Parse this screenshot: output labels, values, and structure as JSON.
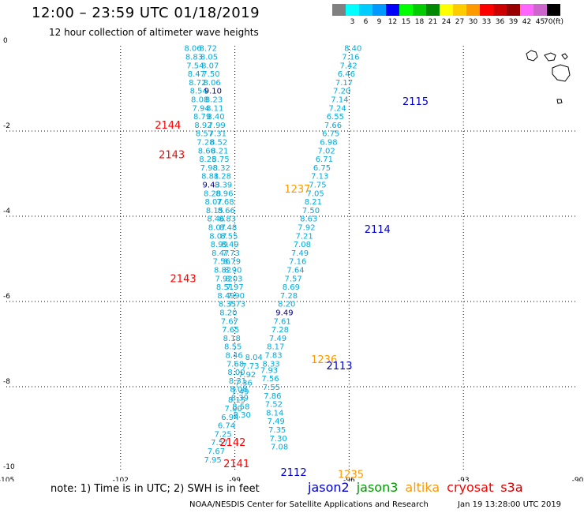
{
  "title": "12:00 – 23:59 UTC 01/18/2019",
  "subtitle": "12 hour collection of altimeter wave heights",
  "legend": {
    "unit": "(ft)",
    "items": [
      {
        "label": "",
        "color": "#808080"
      },
      {
        "label": "3",
        "color": "#00ffff"
      },
      {
        "label": "6",
        "color": "#00ccff"
      },
      {
        "label": "9",
        "color": "#0099ff"
      },
      {
        "label": "12",
        "color": "#0000ff"
      },
      {
        "label": "15",
        "color": "#00ff00"
      },
      {
        "label": "18",
        "color": "#00cc00"
      },
      {
        "label": "21",
        "color": "#008800"
      },
      {
        "label": "24",
        "color": "#ffff00"
      },
      {
        "label": "27",
        "color": "#ffcc00"
      },
      {
        "label": "30",
        "color": "#ff9900"
      },
      {
        "label": "33",
        "color": "#ff0000"
      },
      {
        "label": "36",
        "color": "#cc0000"
      },
      {
        "label": "39",
        "color": "#990000"
      },
      {
        "label": "42",
        "color": "#ff66ff"
      },
      {
        "label": "45",
        "color": "#cc66cc"
      },
      {
        "label": "70",
        "color": "#000000"
      }
    ]
  },
  "note": "note: 1) Time is in UTC; 2) SWH is in feet",
  "satellites": [
    {
      "name": "jason2",
      "color": "#0000cc"
    },
    {
      "name": "jason3",
      "color": "#009900"
    },
    {
      "name": "altika",
      "color": "#ff9900"
    },
    {
      "name": "cryosat",
      "color": "#ff0000"
    },
    {
      "name": "s3a",
      "color": "#cc0000"
    }
  ],
  "footer": "NOAA/NESDIS Center for Satellite Applications and Research",
  "footer_time": "Jan 19 13:28:00 UTC 2019",
  "chart_data": {
    "type": "scatter",
    "xlim": [
      -105,
      -90
    ],
    "ylim": [
      -10,
      0
    ],
    "x_ticks": [
      "-105",
      "-102",
      "-99",
      "-96",
      "-93",
      "-90"
    ],
    "y_ticks": [
      "0",
      "-2",
      "-4",
      "-6",
      "-8",
      "-10"
    ],
    "x_tick_values": [
      -105,
      -102,
      -99,
      -96,
      -93,
      -90
    ],
    "y_tick_values": [
      0,
      -2,
      -4,
      -6,
      -8,
      -10
    ],
    "grid": "dotted",
    "color_normal": "#00aadd",
    "color_high": "#000080",
    "tracks": [
      {
        "pass": "A",
        "start": [
          -100.1,
          -0.05
        ],
        "step": [
          0.03,
          -0.2
        ],
        "values": [
          "8.06",
          "8.83",
          "7.54",
          "8.47",
          "8.72",
          "8.54",
          "8.08",
          "7.94",
          "8.79",
          "8.92",
          "8.57",
          "7.28",
          "8.60",
          "8.25",
          "7.98",
          "8.81",
          "9.43",
          "8.28",
          "8.07",
          "8.15",
          "8.46",
          "8.07",
          "8.07",
          "8.99",
          "8.47",
          "7.56",
          "8.82",
          "7.92",
          "8.51",
          "8.49",
          "8.35",
          "8.20",
          "7.67",
          "7.65",
          "8.18",
          "8.55",
          "8.46",
          "7.68",
          "8.00",
          "8.31",
          "8.08",
          "8.39",
          "8.58",
          "8.30"
        ]
      },
      {
        "pass": "B",
        "start": [
          -99.7,
          -0.05
        ],
        "step": [
          0.025,
          -0.2
        ],
        "values": [
          "8.72",
          "8.05",
          "8.07",
          "7.50",
          "8.06",
          "9.10",
          "8.23",
          "8.11",
          "8.40",
          "7.99",
          "7.31",
          "8.52",
          "8.21",
          "8.75",
          "8.32",
          "8.28",
          "8.39",
          "8.96",
          "7.68",
          "8.66",
          "8.83",
          "8.48",
          "8.55",
          "8.49",
          "7.73",
          "8.79",
          "8.90",
          "8.03",
          "7.97",
          "7.90",
          "7.73"
        ]
      },
      {
        "pass": "C",
        "start": [
          -95.9,
          -0.05
        ],
        "step": [
          -0.058,
          -0.2
        ],
        "values": [
          "8.40",
          "7.16",
          "7.42",
          "6.46",
          "7.17",
          "7.20",
          "7.14",
          "7.24",
          "6.55",
          "7.66",
          "6.75",
          "6.98",
          "7.02",
          "6.71",
          "6.75",
          "7.13",
          "7.75",
          "7.05",
          "8.21",
          "7.50",
          "8.63",
          "7.92",
          "7.21",
          "7.08",
          "7.49",
          "7.16",
          "7.64",
          "7.57",
          "8.69",
          "7.28",
          "8.20",
          "9.49",
          "7.61",
          "7.28",
          "7.49",
          "8.17",
          "7.83",
          "8.33"
        ]
      },
      {
        "pass": "D",
        "start": [
          -98.5,
          -7.3
        ],
        "step": [
          -0.09,
          -0.2
        ],
        "values": [
          "8.04",
          "7.73",
          "7.92",
          "7.36",
          "7.49",
          "8.15",
          "7.00",
          "6.94",
          "6.74",
          "7.25",
          "7.57",
          "7.67",
          "7.95"
        ]
      },
      {
        "pass": "E",
        "start": [
          -98.1,
          -7.6
        ],
        "step": [
          0.03,
          -0.2
        ],
        "values": [
          "7.93",
          "7.56",
          "7.55",
          "7.86",
          "7.52",
          "8.14",
          "7.49",
          "7.35",
          "7.30",
          "7.08"
        ]
      }
    ],
    "annotations": [
      {
        "text": "2144",
        "x": -101.1,
        "y": -1.85,
        "color": "#ff0000"
      },
      {
        "text": "2143",
        "x": -101.0,
        "y": -2.55,
        "color": "#ff0000"
      },
      {
        "text": "2143",
        "x": -100.7,
        "y": -5.45,
        "color": "#ff0000"
      },
      {
        "text": "2142",
        "x": -99.4,
        "y": -9.3,
        "color": "#ff0000"
      },
      {
        "text": "2141",
        "x": -99.3,
        "y": -9.8,
        "color": "#ff0000"
      },
      {
        "text": "1237",
        "x": -97.7,
        "y": -3.35,
        "color": "#ff9900"
      },
      {
        "text": "1236",
        "x": -97.0,
        "y": -7.35,
        "color": "#ff9900"
      },
      {
        "text": "1235",
        "x": -96.3,
        "y": -10.05,
        "color": "#ff9900"
      },
      {
        "text": "2115",
        "x": -94.6,
        "y": -1.3,
        "color": "#0000cc"
      },
      {
        "text": "2114",
        "x": -95.6,
        "y": -4.3,
        "color": "#0000cc"
      },
      {
        "text": "2113",
        "x": -96.6,
        "y": -7.5,
        "color": "#0000cc"
      },
      {
        "text": "2112",
        "x": -97.8,
        "y": -10.0,
        "color": "#0000cc"
      }
    ]
  }
}
